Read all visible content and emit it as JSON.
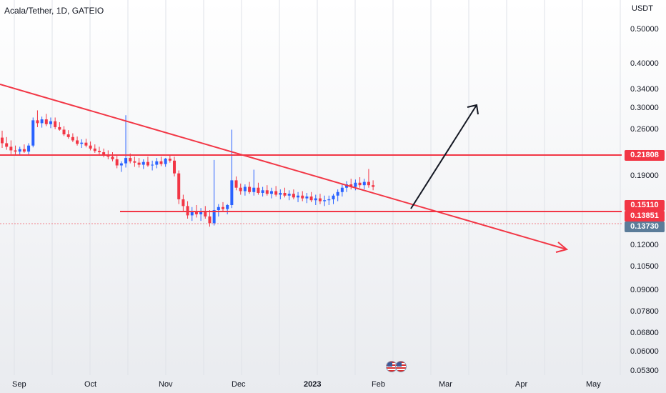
{
  "title": "Acala/Tether, 1D, GATEIO",
  "currency": "USDT",
  "colors": {
    "up": "#2962ff",
    "down": "#f23645",
    "trend": "#f23645",
    "arrow_up": "#131722",
    "last_price": "#5b7c99"
  },
  "price_ticks": [
    "0.50000",
    "0.40000",
    "0.34000",
    "0.30000",
    "0.26000",
    "0.19000",
    "0.12000",
    "0.10500",
    "0.09000",
    "0.07800",
    "0.06800",
    "0.06000",
    "0.05300"
  ],
  "time_ticks": [
    "Sep",
    "Oct",
    "Nov",
    "Dec",
    "2023",
    "Feb",
    "Mar",
    "Apr",
    "May"
  ],
  "tags": [
    {
      "label": "0.21808",
      "kind": "resistance",
      "color": "#f23645"
    },
    {
      "label": "0.15110",
      "kind": "resistance",
      "color": "#f23645"
    },
    {
      "label": "0.13851",
      "kind": "support",
      "color": "#f23645"
    },
    {
      "label": "0.13730",
      "kind": "last_price",
      "color": "#5b7c99"
    }
  ],
  "icons": [
    "us-flag-icon",
    "us-flag-icon"
  ],
  "chart_data": {
    "type": "candlestick",
    "title": "Acala/Tether, 1D, GATEIO",
    "ylabel": "USDT",
    "y_scale": "log",
    "x_range": [
      "2022-08-28",
      "2023-05-08"
    ],
    "y_range": [
      0.052,
      0.58
    ],
    "horizontal_levels": [
      0.21808,
      0.1511,
      0.13851
    ],
    "last_price": 0.1373,
    "series": [
      {
        "values": [
          [
            0.21,
            0.223,
            0.192,
            0.2
          ],
          [
            0.2,
            0.211,
            0.189,
            0.194
          ],
          [
            0.194,
            0.205,
            0.182,
            0.188
          ],
          [
            0.188,
            0.196,
            0.18,
            0.186
          ],
          [
            0.186,
            0.194,
            0.181,
            0.19
          ],
          [
            0.19,
            0.198,
            0.184,
            0.186
          ],
          [
            0.186,
            0.2,
            0.18,
            0.196
          ],
          [
            0.196,
            0.25,
            0.193,
            0.244
          ],
          [
            0.244,
            0.266,
            0.23,
            0.238
          ],
          [
            0.238,
            0.252,
            0.229,
            0.246
          ],
          [
            0.246,
            0.258,
            0.232,
            0.236
          ],
          [
            0.236,
            0.25,
            0.228,
            0.242
          ],
          [
            0.242,
            0.25,
            0.226,
            0.23
          ],
          [
            0.23,
            0.24,
            0.223,
            0.225
          ],
          [
            0.225,
            0.232,
            0.213,
            0.216
          ],
          [
            0.216,
            0.224,
            0.208,
            0.211
          ],
          [
            0.211,
            0.218,
            0.202,
            0.205
          ],
          [
            0.205,
            0.212,
            0.196,
            0.199
          ],
          [
            0.199,
            0.207,
            0.192,
            0.201
          ],
          [
            0.201,
            0.208,
            0.193,
            0.196
          ],
          [
            0.196,
            0.203,
            0.188,
            0.191
          ],
          [
            0.191,
            0.198,
            0.184,
            0.187
          ],
          [
            0.187,
            0.194,
            0.18,
            0.185
          ],
          [
            0.185,
            0.191,
            0.177,
            0.181
          ],
          [
            0.181,
            0.188,
            0.174,
            0.178
          ],
          [
            0.178,
            0.185,
            0.171,
            0.174
          ],
          [
            0.174,
            0.18,
            0.161,
            0.165
          ],
          [
            0.165,
            0.171,
            0.156,
            0.168
          ],
          [
            0.168,
            0.255,
            0.162,
            0.176
          ],
          [
            0.176,
            0.183,
            0.168,
            0.171
          ],
          [
            0.171,
            0.178,
            0.163,
            0.169
          ],
          [
            0.169,
            0.176,
            0.162,
            0.166
          ],
          [
            0.166,
            0.174,
            0.16,
            0.17
          ],
          [
            0.17,
            0.178,
            0.163,
            0.165
          ],
          [
            0.165,
            0.172,
            0.158,
            0.166
          ],
          [
            0.166,
            0.176,
            0.161,
            0.171
          ],
          [
            0.171,
            0.178,
            0.164,
            0.167
          ],
          [
            0.167,
            0.176,
            0.163,
            0.175
          ],
          [
            0.175,
            0.181,
            0.169,
            0.172
          ],
          [
            0.172,
            0.178,
            0.15,
            0.154
          ],
          [
            0.154,
            0.158,
            0.118,
            0.123
          ],
          [
            0.123,
            0.128,
            0.111,
            0.116
          ],
          [
            0.116,
            0.121,
            0.104,
            0.107
          ],
          [
            0.107,
            0.115,
            0.102,
            0.111
          ],
          [
            0.111,
            0.117,
            0.105,
            0.108
          ],
          [
            0.108,
            0.114,
            0.102,
            0.11
          ],
          [
            0.11,
            0.116,
            0.104,
            0.106
          ],
          [
            0.106,
            0.112,
            0.097,
            0.1
          ],
          [
            0.1,
            0.173,
            0.098,
            0.112
          ],
          [
            0.112,
            0.118,
            0.106,
            0.115
          ],
          [
            0.115,
            0.12,
            0.11,
            0.113
          ],
          [
            0.113,
            0.118,
            0.108,
            0.117
          ],
          [
            0.117,
            0.225,
            0.114,
            0.145
          ],
          [
            0.145,
            0.15,
            0.133,
            0.136
          ],
          [
            0.136,
            0.141,
            0.128,
            0.132
          ],
          [
            0.132,
            0.14,
            0.127,
            0.137
          ],
          [
            0.137,
            0.143,
            0.129,
            0.131
          ],
          [
            0.131,
            0.159,
            0.127,
            0.136
          ],
          [
            0.136,
            0.142,
            0.128,
            0.13
          ],
          [
            0.13,
            0.137,
            0.126,
            0.133
          ],
          [
            0.133,
            0.139,
            0.127,
            0.129
          ],
          [
            0.129,
            0.136,
            0.124,
            0.132
          ],
          [
            0.132,
            0.138,
            0.126,
            0.128
          ],
          [
            0.128,
            0.134,
            0.123,
            0.13
          ],
          [
            0.13,
            0.136,
            0.125,
            0.127
          ],
          [
            0.127,
            0.133,
            0.122,
            0.129
          ],
          [
            0.129,
            0.134,
            0.123,
            0.125
          ],
          [
            0.125,
            0.131,
            0.12,
            0.127
          ],
          [
            0.127,
            0.132,
            0.121,
            0.124
          ],
          [
            0.124,
            0.13,
            0.119,
            0.126
          ],
          [
            0.126,
            0.131,
            0.12,
            0.122
          ],
          [
            0.122,
            0.128,
            0.117,
            0.124
          ],
          [
            0.124,
            0.129,
            0.118,
            0.121
          ],
          [
            0.121,
            0.127,
            0.116,
            0.122
          ],
          [
            0.122,
            0.127,
            0.117,
            0.123
          ],
          [
            0.123,
            0.129,
            0.118,
            0.127
          ],
          [
            0.127,
            0.134,
            0.121,
            0.131
          ],
          [
            0.131,
            0.14,
            0.126,
            0.136
          ],
          [
            0.136,
            0.144,
            0.131,
            0.14
          ],
          [
            0.14,
            0.147,
            0.134,
            0.137
          ],
          [
            0.137,
            0.146,
            0.133,
            0.142
          ],
          [
            0.142,
            0.149,
            0.136,
            0.139
          ],
          [
            0.139,
            0.147,
            0.134,
            0.143
          ],
          [
            0.143,
            0.16,
            0.136,
            0.139
          ],
          [
            0.139,
            0.145,
            0.133,
            0.137
          ]
        ]
      }
    ]
  }
}
